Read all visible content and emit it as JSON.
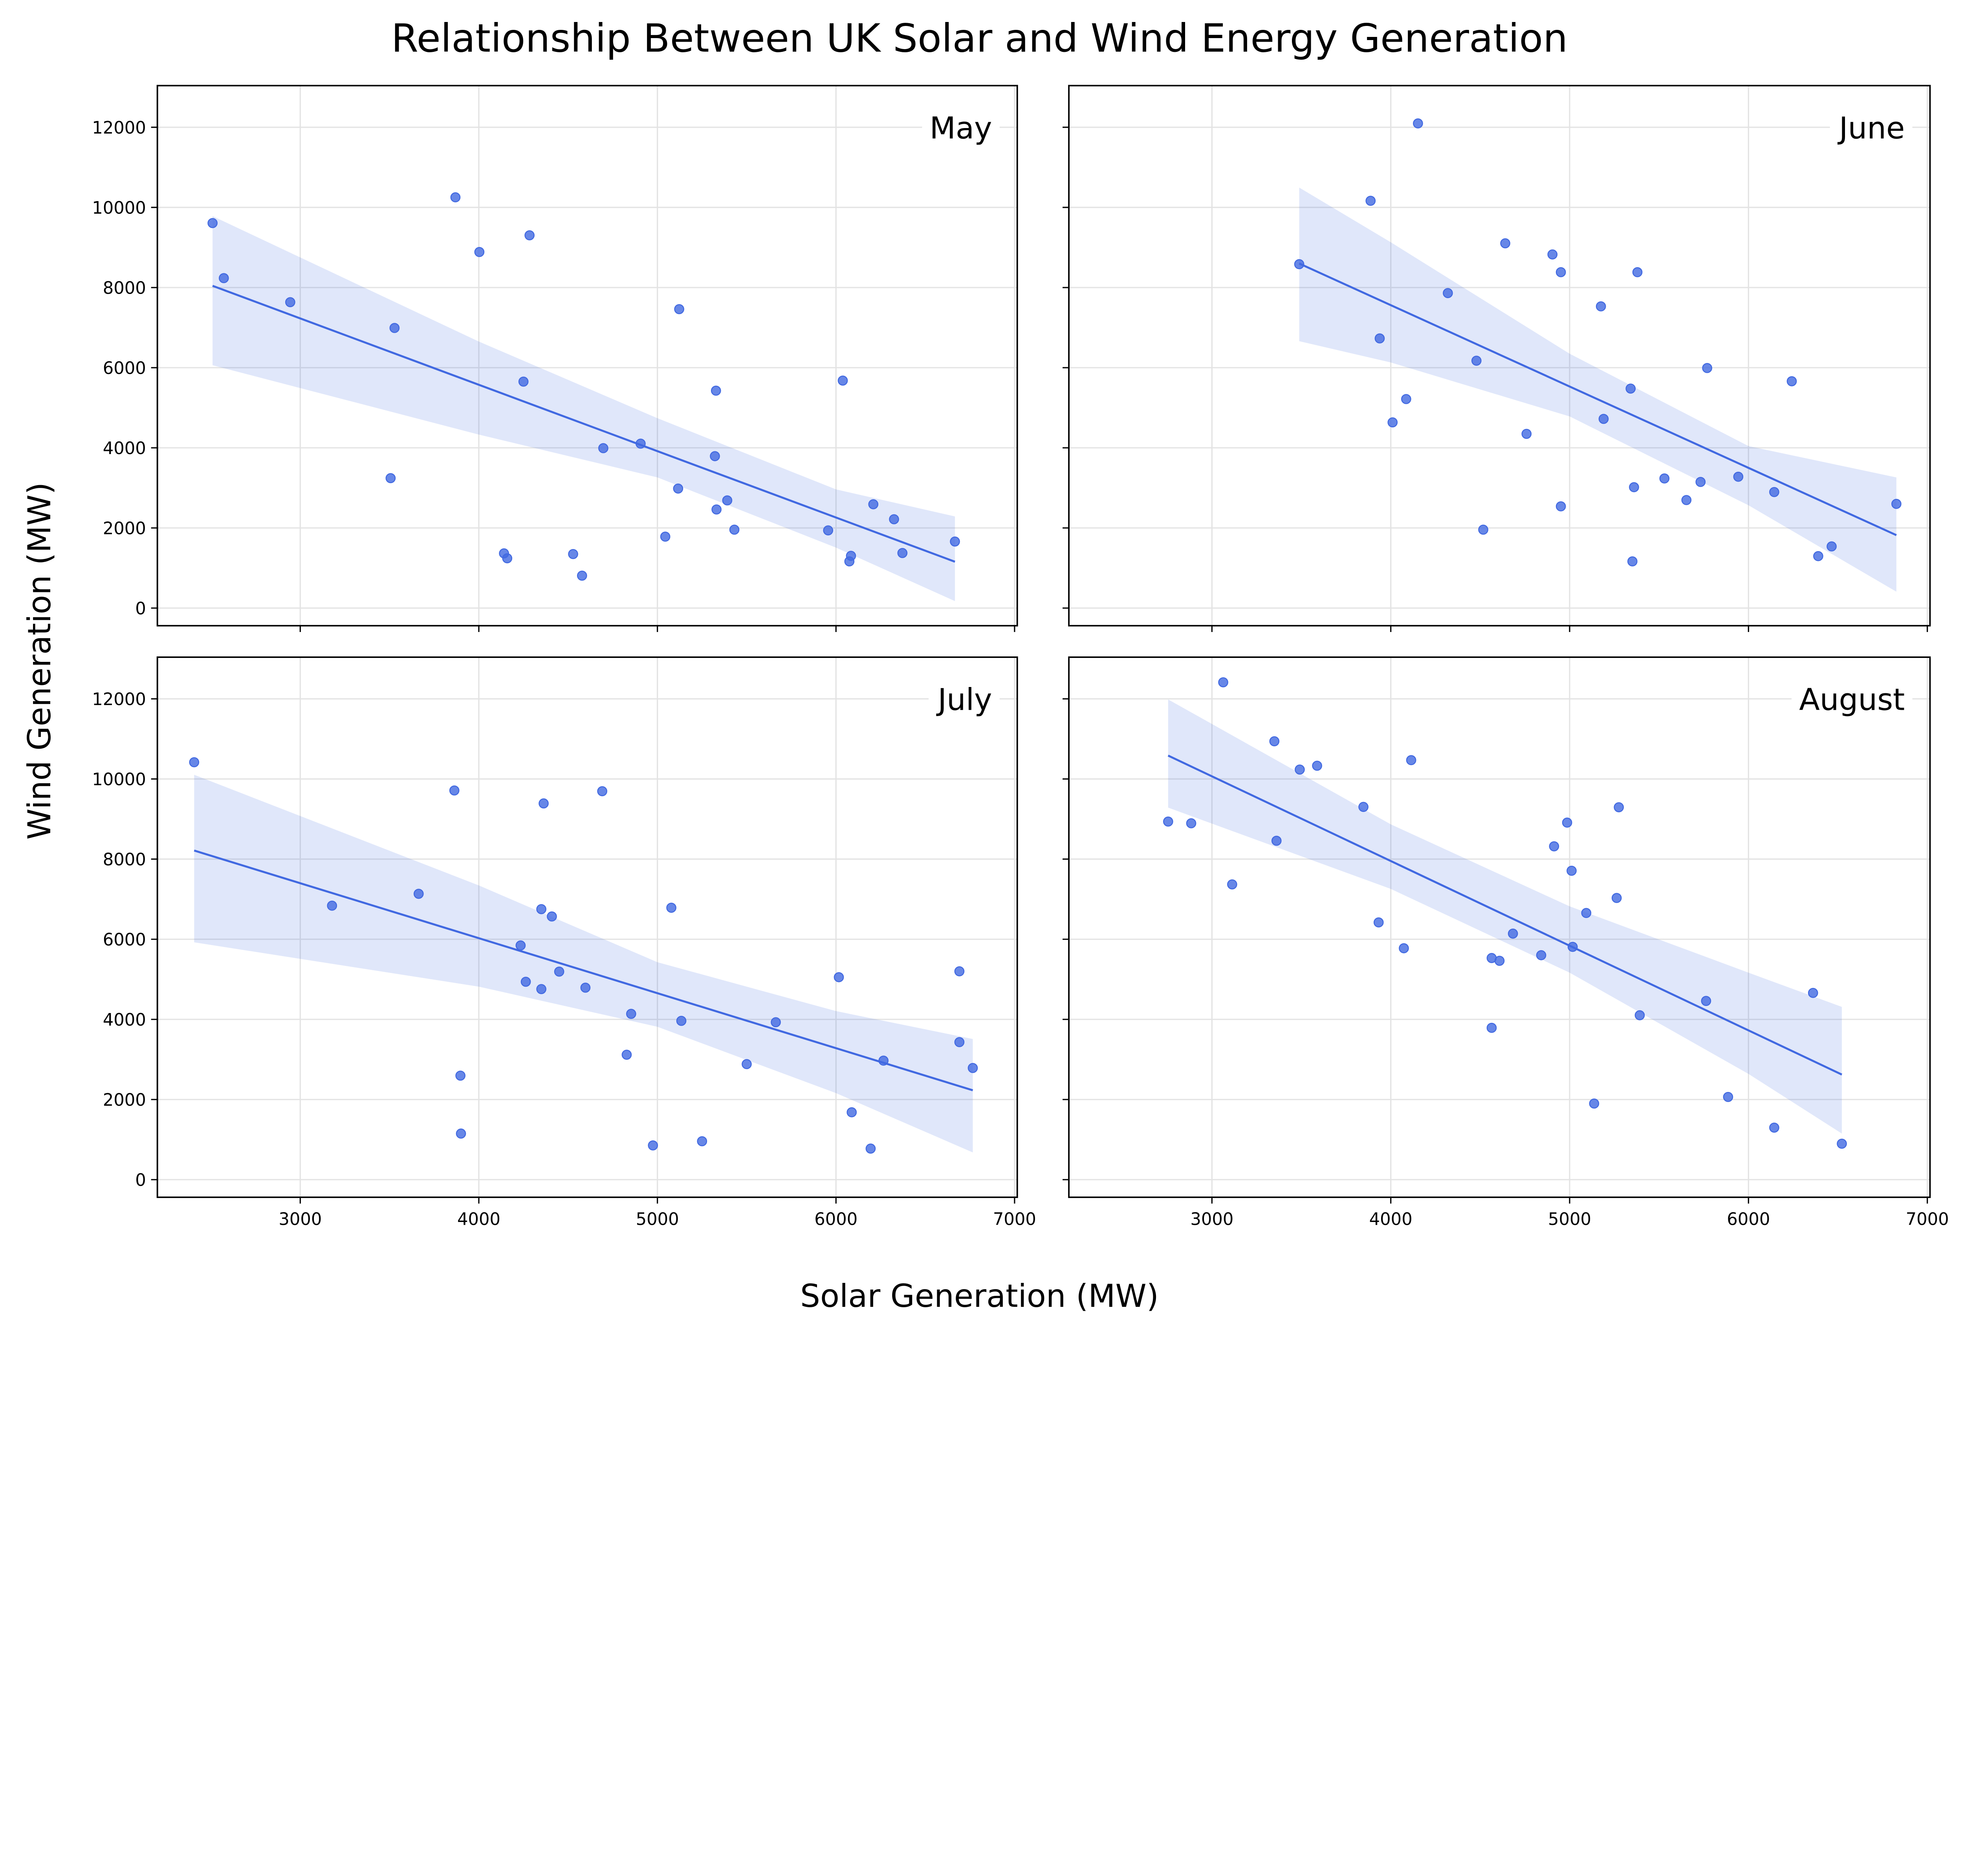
{
  "title": "Relationship Between UK Solar and Wind Energy Generation",
  "xlabel": "Solar Generation (MW)",
  "ylabel": "Wind Generation (MW)",
  "colors": {
    "points": "#4169E1",
    "line": "#4169E1",
    "band": "#4169E1",
    "grid": "#e3e3e3"
  },
  "chart_data": [
    {
      "type": "scatter",
      "title": "May",
      "xlim": [
        2200,
        7015
      ],
      "ylim": [
        -440,
        13040
      ],
      "xticks": [
        3000,
        4000,
        5000,
        6000,
        7000
      ],
      "yticks": [
        0,
        2000,
        4000,
        6000,
        8000,
        10000,
        12000
      ],
      "grid": true,
      "x": [
        2509,
        2572,
        2944,
        3528,
        3506,
        3869,
        4003,
        4284,
        5122,
        4250,
        4141,
        4159,
        4528,
        4578,
        4697,
        4906,
        5044,
        5328,
        5322,
        5116,
        5391,
        5331,
        5431,
        5956,
        6038,
        6084,
        6075,
        6209,
        6325,
        6372,
        6666
      ],
      "y": [
        9609,
        8235,
        7635,
        6991,
        3243,
        10252,
        8887,
        9304,
        7461,
        5652,
        1365,
        1243,
        1348,
        809,
        3991,
        4104,
        1783,
        5426,
        3791,
        2983,
        2687,
        2461,
        1957,
        1939,
        5678,
        1304,
        1165,
        2591,
        2217,
        1374,
        1661
      ],
      "regression": {
        "x": [
          2509,
          6666
        ],
        "y": [
          8043,
          1157
        ]
      },
      "ci_band": {
        "x": [
          2509,
          4000,
          5000,
          6000,
          6666
        ],
        "lower": [
          6061,
          4330,
          3261,
          1509,
          174
        ],
        "upper": [
          9783,
          6652,
          4739,
          2962,
          2287
        ]
      }
    },
    {
      "type": "scatter",
      "title": "June",
      "xlim": [
        2200,
        7015
      ],
      "ylim": [
        -440,
        13040
      ],
      "xticks": [
        3000,
        4000,
        5000,
        6000,
        7000
      ],
      "yticks": [
        0,
        2000,
        4000,
        6000,
        8000,
        10000,
        12000
      ],
      "grid": true,
      "x": [
        5360,
        5530,
        5653,
        5732,
        5943,
        6144,
        6242,
        5769,
        5341,
        5190,
        5351,
        6390,
        6465,
        6827,
        4951,
        4517,
        4759,
        4479,
        4086,
        4010,
        3938,
        3887,
        4152,
        3488,
        4319,
        4640,
        4904,
        4951,
        5379,
        5175
      ],
      "y": [
        3017,
        3235,
        2696,
        3148,
        3278,
        2896,
        5661,
        5991,
        5478,
        4722,
        1165,
        1296,
        1539,
        2600,
        2539,
        1957,
        4348,
        6174,
        5217,
        4635,
        6730,
        10165,
        12096,
        8583,
        7861,
        9104,
        8826,
        8383,
        8383,
        7530
      ],
      "regression": {
        "x": [
          3488,
          6827
        ],
        "y": [
          8600,
          1820
        ]
      },
      "ci_band": {
        "x": [
          3488,
          4000,
          5000,
          6000,
          6827
        ],
        "lower": [
          6661,
          6130,
          4783,
          2565,
          409
        ],
        "upper": [
          10496,
          9130,
          6348,
          4043,
          3261
        ]
      }
    },
    {
      "type": "scatter",
      "title": "July",
      "xlim": [
        2200,
        7015
      ],
      "ylim": [
        -440,
        13040
      ],
      "xticks": [
        3000,
        4000,
        5000,
        6000,
        7000
      ],
      "yticks": [
        0,
        2000,
        4000,
        6000,
        8000,
        10000,
        12000
      ],
      "grid": true,
      "x": [
        2406,
        3178,
        3663,
        3863,
        4363,
        4691,
        3897,
        3900,
        4350,
        4409,
        4234,
        4263,
        4350,
        4450,
        4597,
        4853,
        4828,
        5078,
        5134,
        4975,
        5250,
        5500,
        5663,
        6016,
        6088,
        6194,
        6266,
        6691,
        6691,
        6766
      ],
      "y": [
        10418,
        6838,
        7134,
        9713,
        9390,
        9695,
        2596,
        1150,
        6751,
        6568,
        5845,
        4939,
        4756,
        5192,
        4791,
        4138,
        3118,
        6786,
        3963,
        854,
        958,
        2883,
        3929,
        5052,
        1681,
        775,
        2970,
        5200,
        3432,
        2787
      ],
      "regression": {
        "x": [
          2406,
          6766
        ],
        "y": [
          8214,
          2230
        ]
      },
      "ci_band": {
        "x": [
          2406,
          4000,
          5000,
          6000,
          6766
        ],
        "lower": [
          5923,
          4817,
          3815,
          2160,
          679
        ],
        "upper": [
          10105,
          7343,
          5427,
          4207,
          3510
        ]
      }
    },
    {
      "type": "scatter",
      "title": "August",
      "xlim": [
        2200,
        7015
      ],
      "ylim": [
        -440,
        13040
      ],
      "xticks": [
        3000,
        4000,
        5000,
        6000,
        7000
      ],
      "yticks": [
        0,
        2000,
        4000,
        6000,
        8000,
        10000,
        12000
      ],
      "grid": true,
      "x": [
        3063,
        2755,
        2884,
        3349,
        3361,
        3113,
        3491,
        3588,
        3847,
        4114,
        3932,
        4073,
        4564,
        4608,
        4564,
        4683,
        4841,
        4913,
        4986,
        5011,
        5017,
        5093,
        5137,
        5263,
        5275,
        5392,
        5763,
        5886,
        6144,
        6361,
        6522
      ],
      "y": [
        12413,
        8937,
        8894,
        10941,
        8458,
        7369,
        10235,
        10331,
        9303,
        10470,
        6420,
        5775,
        5531,
        5462,
        3789,
        6141,
        5601,
        8319,
        8911,
        7709,
        5810,
        6655,
        1899,
        7030,
        9294,
        4103,
        4460,
        2064,
        1298,
        4660,
        897
      ],
      "regression": {
        "x": [
          2755,
          6522
        ],
        "y": [
          10584,
          2622
        ]
      },
      "ci_band": {
        "x": [
          2755,
          4000,
          5000,
          6000,
          6522
        ],
        "lower": [
          9286,
          7256,
          5166,
          2639,
          1150
        ],
        "upper": [
          11986,
          8868,
          6821,
          5166,
          4312
        ]
      }
    }
  ]
}
